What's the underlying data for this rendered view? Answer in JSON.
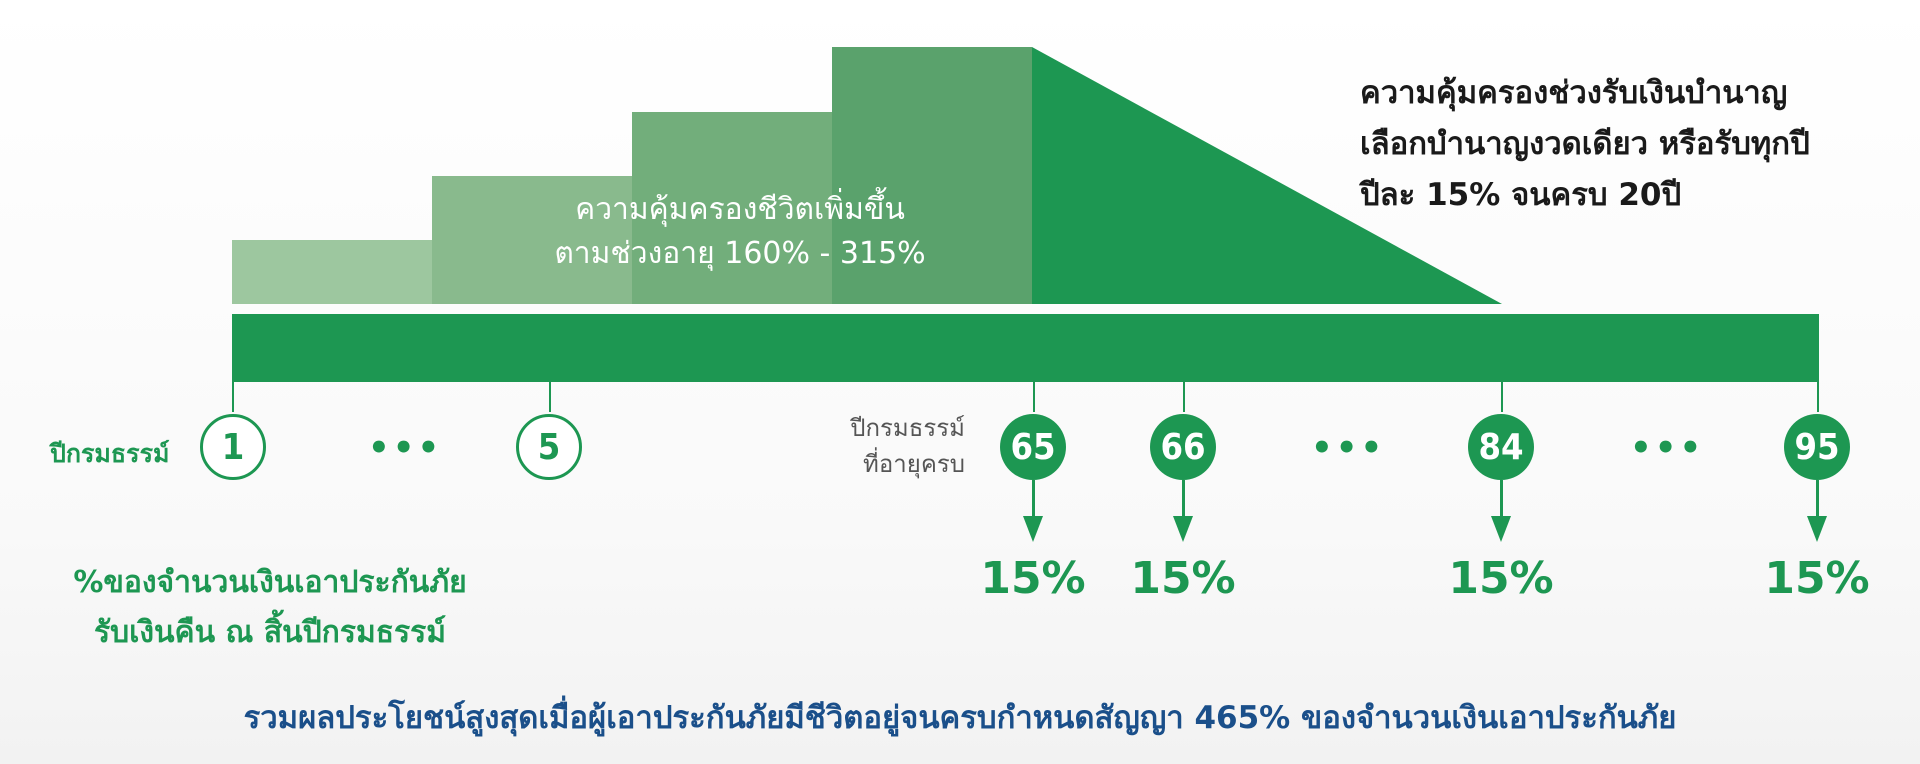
{
  "diagram": {
    "life_coverage": {
      "line1": "ความคุ้มครองชีวิตเพิ่มขึ้น",
      "line2": "ตามช่วงอายุ 160% - 315%"
    },
    "annuity_coverage": {
      "line1": "ความคุ้มครองช่วงรับเงินบำนาญ",
      "line2": "เลือกบำนาญงวดเดียว หรือรับทุกปี",
      "line3": "ปีละ 15% จนครบ 20ปี"
    },
    "timeline": {
      "policy_year_label": "ปีกรมธรรม์",
      "policy_years": [
        "1",
        "5"
      ],
      "age_label_line1": "ปีกรมธรรม์",
      "age_label_line2": "ที่อายุครบ",
      "ages": [
        "65",
        "66",
        "84",
        "95"
      ],
      "ellipsis": "•••"
    },
    "payouts": [
      "15%",
      "15%",
      "15%",
      "15%"
    ],
    "cashback_label": {
      "line1": "%ของจำนวนเงินเอาประกันภัย",
      "line2": "รับเงินคืน ณ สิ้นปีกรมธรรม์"
    },
    "summary": "รวมผลประโยชน์สูงสุดเมื่อผู้เอาประกันภัยมีชีวิตอยู่จนครบกำหนดสัญญา 465% ของจำนวนเงินเอาประกันภัย",
    "colors": {
      "primary_green": "#1d9752",
      "summary_blue": "#1a4f8a"
    }
  }
}
